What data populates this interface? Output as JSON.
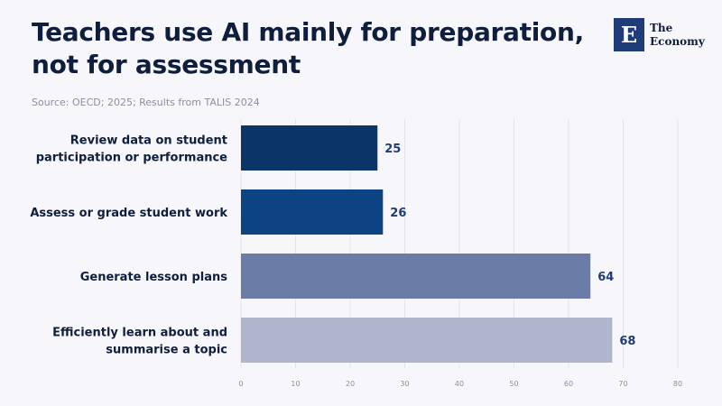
{
  "header": {
    "title": "Teachers use AI mainly for preparation, not for assessment",
    "source": "Source: OECD; 2025; Results from TALIS 2024"
  },
  "logo": {
    "mark": "E",
    "line1": "The",
    "line2": "Economy",
    "color": "#1f3c78"
  },
  "chart_data": {
    "type": "bar",
    "orientation": "horizontal",
    "categories": [
      [
        "Review data on student",
        "participation or performance"
      ],
      [
        "Assess or grade student work"
      ],
      [
        "Generate lesson plans"
      ],
      [
        "Efficiently learn about and",
        "summarise a topic"
      ]
    ],
    "values": [
      25,
      26,
      64,
      68
    ],
    "colors": [
      "#0b3566",
      "#0c4483",
      "#6b7ca6",
      "#afb5ca"
    ],
    "xlim": [
      0,
      80
    ],
    "xticks": [
      0,
      10,
      20,
      30,
      40,
      50,
      60,
      70,
      80
    ],
    "grid": true,
    "legend": "none"
  }
}
